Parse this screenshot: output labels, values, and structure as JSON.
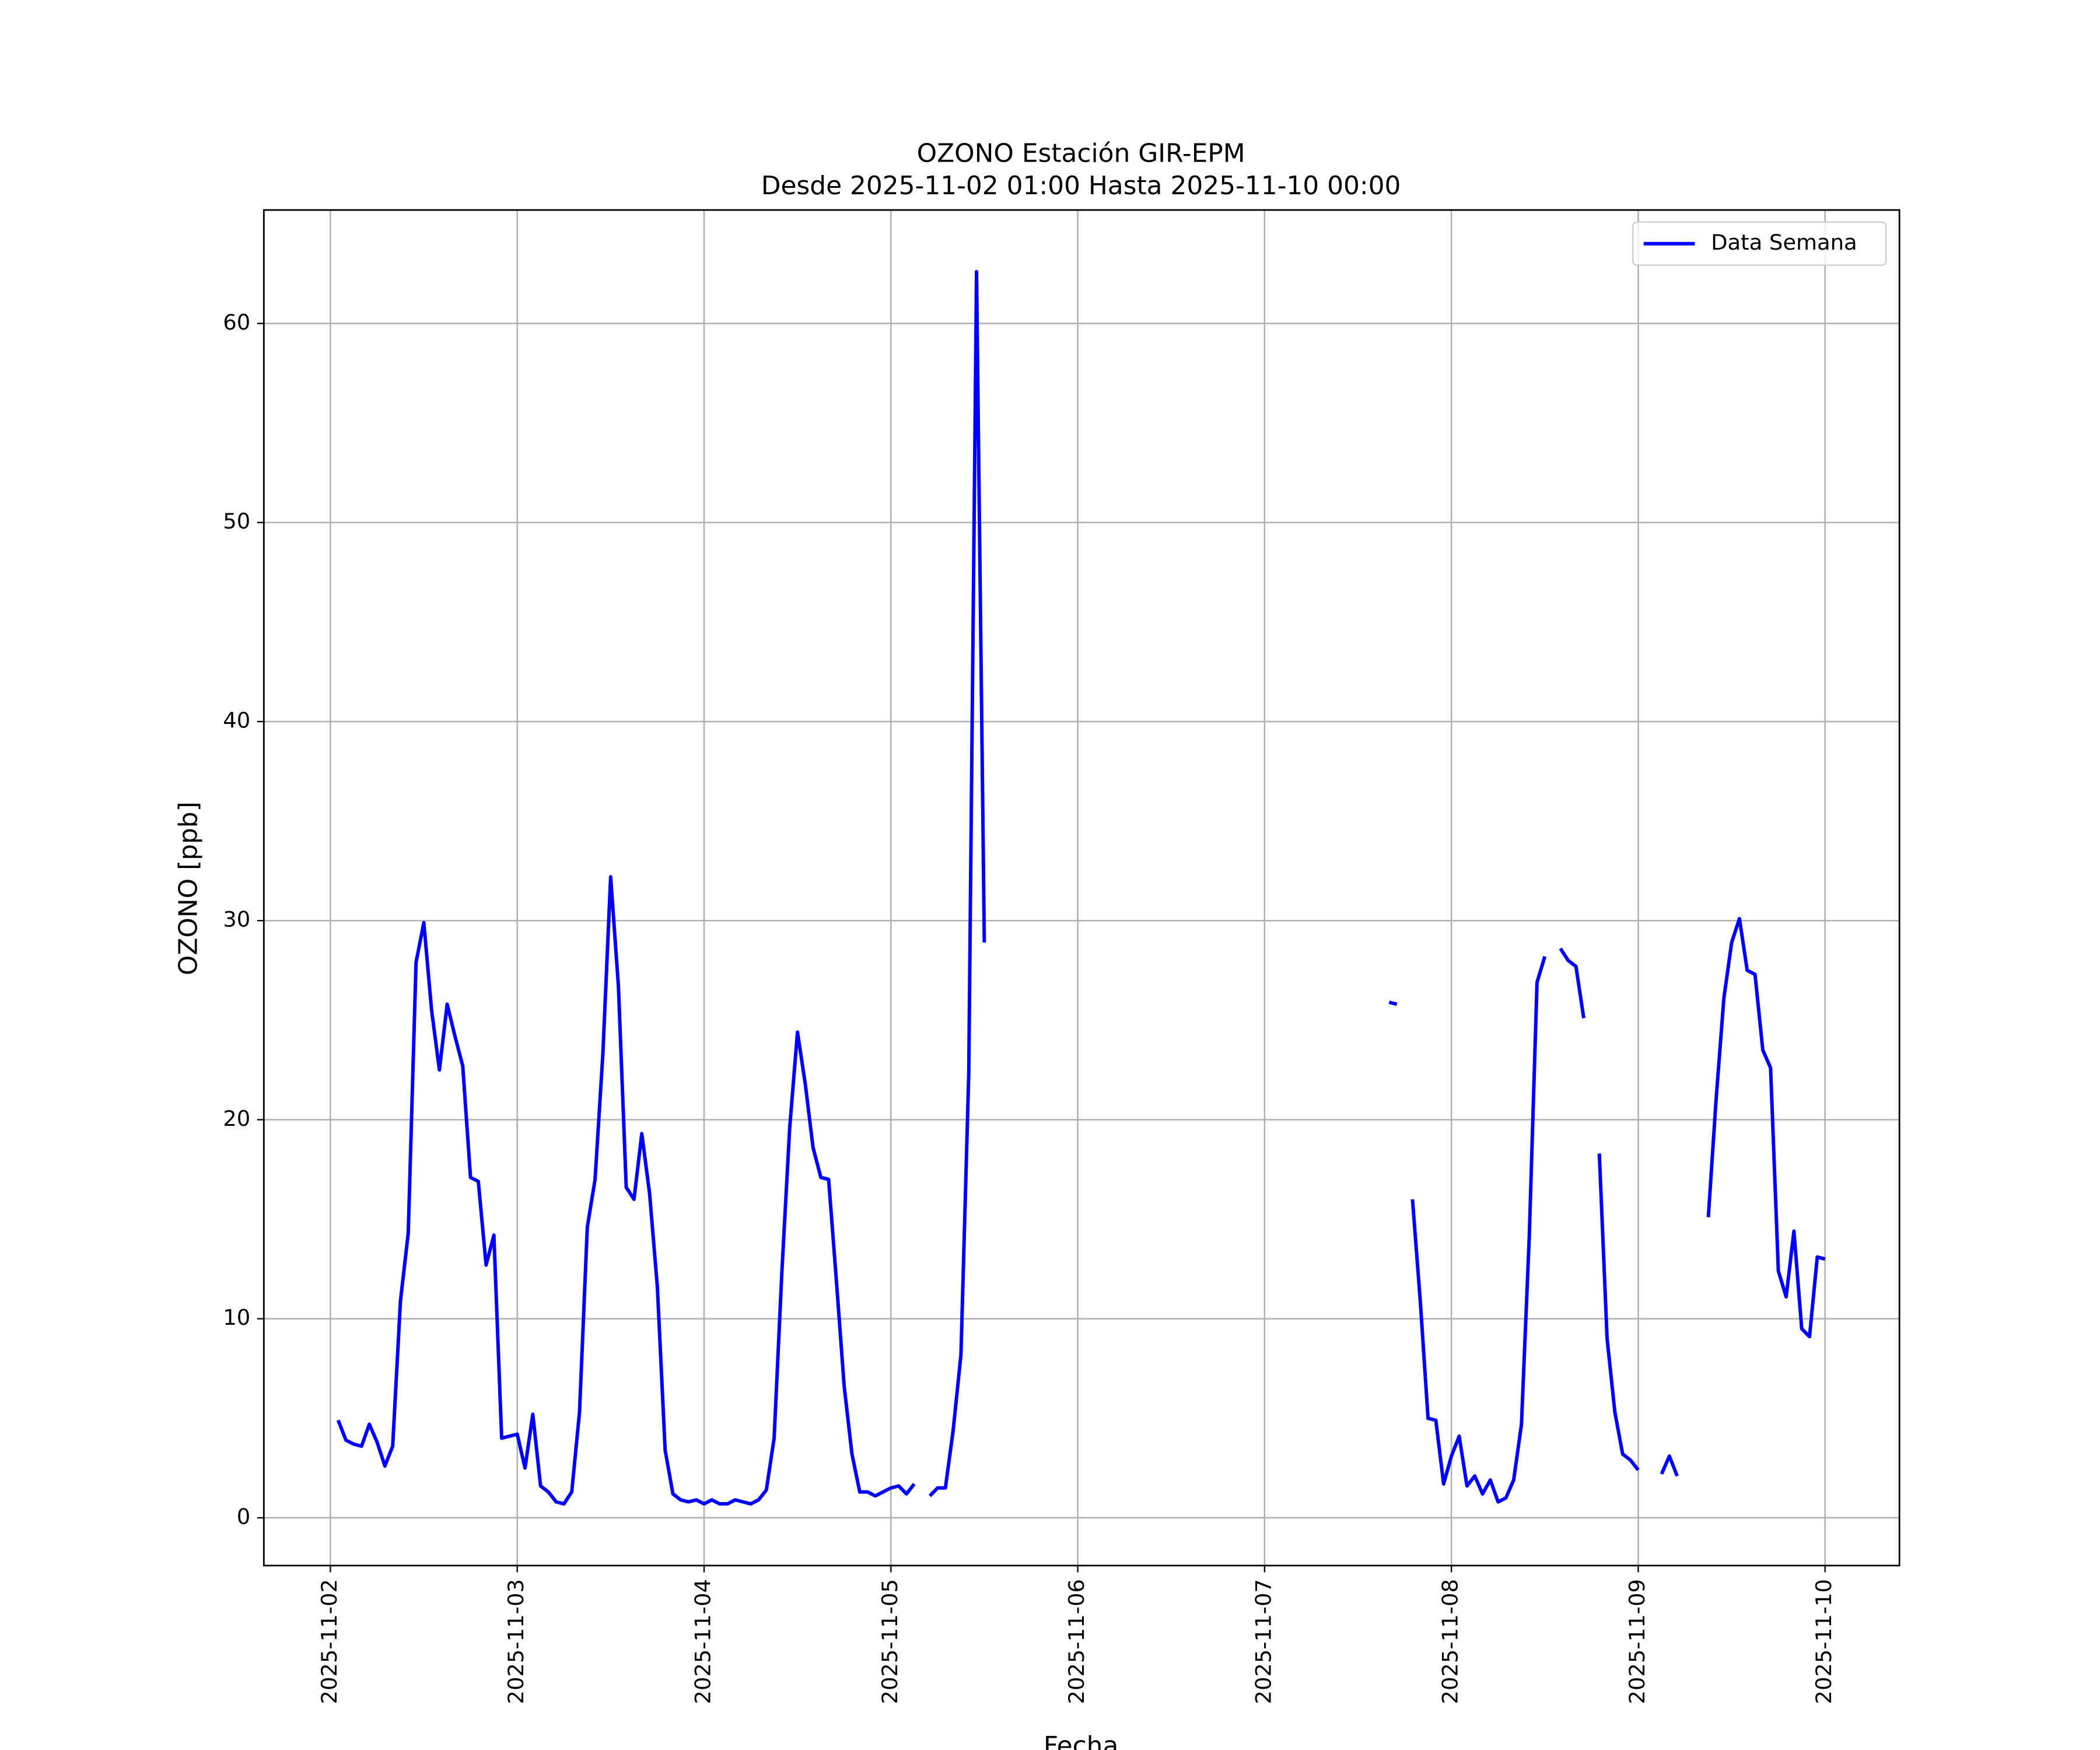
{
  "chart_data": {
    "type": "line",
    "title": "OZONO Estación GIR-EPM",
    "subtitle": "Desde 2025-11-02 01:00 Hasta 2025-11-10 00:00",
    "x_label": "Fecha",
    "y_label": "OZONO [ppb]",
    "x": [
      "2025-11-02 01:00",
      "2025-11-02 02:00",
      "2025-11-02 03:00",
      "2025-11-02 04:00",
      "2025-11-02 05:00",
      "2025-11-02 06:00",
      "2025-11-02 07:00",
      "2025-11-02 08:00",
      "2025-11-02 09:00",
      "2025-11-02 10:00",
      "2025-11-02 11:00",
      "2025-11-02 12:00",
      "2025-11-02 13:00",
      "2025-11-02 14:00",
      "2025-11-02 15:00",
      "2025-11-02 16:00",
      "2025-11-02 17:00",
      "2025-11-02 18:00",
      "2025-11-02 19:00",
      "2025-11-02 20:00",
      "2025-11-02 21:00",
      "2025-11-02 22:00",
      "2025-11-02 23:00",
      "2025-11-03 00:00",
      "2025-11-03 01:00",
      "2025-11-03 02:00",
      "2025-11-03 03:00",
      "2025-11-03 04:00",
      "2025-11-03 05:00",
      "2025-11-03 06:00",
      "2025-11-03 07:00",
      "2025-11-03 08:00",
      "2025-11-03 09:00",
      "2025-11-03 10:00",
      "2025-11-03 11:00",
      "2025-11-03 12:00",
      "2025-11-03 13:00",
      "2025-11-03 14:00",
      "2025-11-03 15:00",
      "2025-11-03 16:00",
      "2025-11-03 17:00",
      "2025-11-03 18:00",
      "2025-11-03 19:00",
      "2025-11-03 20:00",
      "2025-11-03 21:00",
      "2025-11-03 22:00",
      "2025-11-03 23:00",
      "2025-11-04 00:00",
      "2025-11-04 01:00",
      "2025-11-04 02:00",
      "2025-11-04 03:00",
      "2025-11-04 04:00",
      "2025-11-04 05:00",
      "2025-11-04 06:00",
      "2025-11-04 07:00",
      "2025-11-04 08:00",
      "2025-11-04 09:00",
      "2025-11-04 10:00",
      "2025-11-04 11:00",
      "2025-11-04 12:00",
      "2025-11-04 13:00",
      "2025-11-04 14:00",
      "2025-11-04 15:00",
      "2025-11-04 16:00",
      "2025-11-04 17:00",
      "2025-11-04 18:00",
      "2025-11-04 19:00",
      "2025-11-04 20:00",
      "2025-11-04 21:00",
      "2025-11-04 22:00",
      "2025-11-04 23:00",
      "2025-11-05 00:00",
      "2025-11-05 01:00",
      "2025-11-05 02:00",
      "2025-11-05 03:00",
      "2025-11-05 04:00",
      "2025-11-05 05:00",
      "2025-11-05 06:00",
      "2025-11-05 07:00",
      "2025-11-05 08:00",
      "2025-11-05 09:00",
      "2025-11-05 10:00",
      "2025-11-05 11:00",
      "2025-11-05 12:00",
      "2025-11-05 13:00",
      "2025-11-05 14:00",
      "2025-11-05 15:00",
      "2025-11-05 16:00",
      "2025-11-05 17:00",
      "2025-11-05 18:00",
      "2025-11-05 19:00",
      "2025-11-05 20:00",
      "2025-11-05 21:00",
      "2025-11-05 22:00",
      "2025-11-05 23:00",
      "2025-11-06 00:00",
      "2025-11-06 01:00",
      "2025-11-06 02:00",
      "2025-11-06 03:00",
      "2025-11-06 04:00",
      "2025-11-06 05:00",
      "2025-11-06 06:00",
      "2025-11-06 07:00",
      "2025-11-06 08:00",
      "2025-11-06 09:00",
      "2025-11-06 10:00",
      "2025-11-06 11:00",
      "2025-11-06 12:00",
      "2025-11-06 13:00",
      "2025-11-06 14:00",
      "2025-11-06 15:00",
      "2025-11-06 16:00",
      "2025-11-06 17:00",
      "2025-11-06 18:00",
      "2025-11-06 19:00",
      "2025-11-06 20:00",
      "2025-11-06 21:00",
      "2025-11-06 22:00",
      "2025-11-06 23:00",
      "2025-11-07 00:00",
      "2025-11-07 01:00",
      "2025-11-07 02:00",
      "2025-11-07 03:00",
      "2025-11-07 04:00",
      "2025-11-07 05:00",
      "2025-11-07 06:00",
      "2025-11-07 07:00",
      "2025-11-07 08:00",
      "2025-11-07 09:00",
      "2025-11-07 10:00",
      "2025-11-07 11:00",
      "2025-11-07 12:00",
      "2025-11-07 13:00",
      "2025-11-07 14:00",
      "2025-11-07 15:00",
      "2025-11-07 16:00",
      "2025-11-07 17:00",
      "2025-11-07 18:00",
      "2025-11-07 19:00",
      "2025-11-07 20:00",
      "2025-11-07 21:00",
      "2025-11-07 22:00",
      "2025-11-07 23:00",
      "2025-11-08 00:00",
      "2025-11-08 01:00",
      "2025-11-08 02:00",
      "2025-11-08 03:00",
      "2025-11-08 04:00",
      "2025-11-08 05:00",
      "2025-11-08 06:00",
      "2025-11-08 07:00",
      "2025-11-08 08:00",
      "2025-11-08 09:00",
      "2025-11-08 10:00",
      "2025-11-08 11:00",
      "2025-11-08 12:00",
      "2025-11-08 13:00",
      "2025-11-08 14:00",
      "2025-11-08 15:00",
      "2025-11-08 16:00",
      "2025-11-08 17:00",
      "2025-11-08 18:00",
      "2025-11-08 19:00",
      "2025-11-08 20:00",
      "2025-11-08 21:00",
      "2025-11-08 22:00",
      "2025-11-08 23:00",
      "2025-11-09 00:00",
      "2025-11-09 01:00",
      "2025-11-09 02:00",
      "2025-11-09 03:00",
      "2025-11-09 04:00",
      "2025-11-09 05:00",
      "2025-11-09 06:00",
      "2025-11-09 07:00",
      "2025-11-09 08:00",
      "2025-11-09 09:00",
      "2025-11-09 10:00",
      "2025-11-09 11:00",
      "2025-11-09 12:00",
      "2025-11-09 13:00",
      "2025-11-09 14:00",
      "2025-11-09 15:00",
      "2025-11-09 16:00",
      "2025-11-09 17:00",
      "2025-11-09 18:00",
      "2025-11-09 19:00",
      "2025-11-09 20:00",
      "2025-11-09 21:00",
      "2025-11-09 22:00",
      "2025-11-09 23:00",
      "2025-11-10 00:00"
    ],
    "series": [
      {
        "name": "Data Semana",
        "color": "#0000ff",
        "values": [
          4.9,
          3.9,
          3.7,
          3.6,
          4.7,
          3.8,
          2.6,
          3.6,
          10.9,
          14.3,
          27.9,
          29.9,
          25.5,
          22.5,
          25.8,
          24.2,
          22.7,
          17.1,
          16.9,
          12.7,
          14.2,
          4.0,
          4.1,
          4.2,
          2.5,
          5.2,
          1.6,
          1.3,
          0.8,
          0.7,
          1.3,
          5.3,
          14.6,
          17.0,
          23.3,
          32.2,
          26.7,
          16.6,
          16.0,
          19.3,
          16.3,
          11.6,
          3.4,
          1.2,
          0.9,
          0.8,
          0.9,
          0.7,
          0.9,
          0.7,
          0.7,
          0.9,
          0.8,
          0.7,
          0.9,
          1.4,
          4.0,
          12.4,
          19.6,
          24.4,
          21.8,
          18.6,
          17.1,
          17.0,
          11.9,
          6.6,
          3.2,
          1.3,
          1.3,
          1.1,
          1.3,
          1.5,
          1.6,
          1.2,
          1.7,
          null,
          1.1,
          1.5,
          1.5,
          4.4,
          8.2,
          22.3,
          62.6,
          28.9,
          null,
          null,
          null,
          null,
          null,
          null,
          null,
          null,
          null,
          null,
          null,
          null,
          null,
          null,
          null,
          null,
          null,
          null,
          null,
          null,
          null,
          null,
          null,
          null,
          null,
          null,
          null,
          null,
          null,
          null,
          null,
          null,
          null,
          null,
          null,
          null,
          null,
          null,
          null,
          null,
          null,
          null,
          null,
          null,
          null,
          null,
          null,
          null,
          null,
          null,
          null,
          25.9,
          25.8,
          null,
          16.0,
          10.9,
          5.0,
          4.9,
          1.7,
          3.1,
          4.1,
          1.6,
          2.1,
          1.2,
          1.9,
          0.8,
          1.0,
          1.9,
          4.7,
          14.1,
          26.9,
          28.2,
          null,
          28.6,
          28.0,
          27.7,
          25.1,
          null,
          18.3,
          9.0,
          5.3,
          3.2,
          2.9,
          2.4,
          null,
          null,
          2.2,
          3.1,
          2.1,
          null,
          null,
          null,
          15.1,
          21.0,
          26.1,
          28.9,
          30.1,
          27.5,
          27.3,
          23.5,
          22.6,
          12.4,
          11.1,
          14.4,
          9.5,
          9.1,
          13.1,
          13.0
        ]
      }
    ],
    "xlim": [
      "2025-11-01 15:27",
      "2025-11-10 09:33"
    ],
    "xticks": [
      "2025-11-02",
      "2025-11-03",
      "2025-11-04",
      "2025-11-05",
      "2025-11-06",
      "2025-11-07",
      "2025-11-08",
      "2025-11-09",
      "2025-11-10"
    ],
    "ylim": [
      -2.4,
      65.7
    ],
    "yticks": [
      0,
      10,
      20,
      30,
      40,
      50,
      60
    ],
    "grid": true,
    "legend": "upper right"
  }
}
